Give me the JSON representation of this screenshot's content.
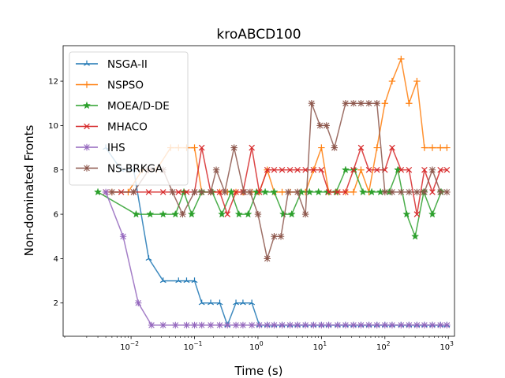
{
  "chart_data": {
    "type": "line",
    "title": "kroABCD100",
    "xlabel": "Time (s)",
    "ylabel": "Non-dominated Fronts",
    "xscale": "log",
    "xlim": [
      0.00085,
      1250
    ],
    "ylim": [
      0.5,
      13.6
    ],
    "xticks": [
      {
        "value": 0.01,
        "base": "10",
        "exp": "−2"
      },
      {
        "value": 0.1,
        "base": "10",
        "exp": "−1"
      },
      {
        "value": 1,
        "base": "10",
        "exp": "0"
      },
      {
        "value": 10,
        "base": "10",
        "exp": "1"
      },
      {
        "value": 100,
        "base": "10",
        "exp": "2"
      },
      {
        "value": 1000,
        "base": "10",
        "exp": "3"
      }
    ],
    "yticks": [
      2,
      4,
      6,
      8,
      10,
      12
    ],
    "grid": false,
    "legend": "upper-left",
    "series": [
      {
        "name": "NSGA-II",
        "color": "#1f77b4",
        "marker": "tri-up",
        "x": [
          0.004,
          0.007,
          0.011,
          0.019,
          0.032,
          0.056,
          0.075,
          0.1,
          0.13,
          0.18,
          0.25,
          0.33,
          0.45,
          0.58,
          0.8,
          1.05,
          1.4,
          1.8,
          2.4,
          3.2,
          4.2,
          5.6,
          7.5,
          10,
          13,
          18,
          24,
          32,
          42,
          56,
          75,
          100,
          130,
          180,
          240,
          320,
          420,
          560,
          750,
          950
        ],
        "y": [
          9,
          8,
          8,
          4,
          3,
          3,
          3,
          3,
          2,
          2,
          2,
          1,
          2,
          2,
          2,
          1,
          1,
          1,
          1,
          1,
          1,
          1,
          1,
          1,
          1,
          1,
          1,
          1,
          1,
          1,
          1,
          1,
          1,
          1,
          1,
          1,
          1,
          1,
          1,
          1
        ]
      },
      {
        "name": "NSPSO",
        "color": "#ff7f0e",
        "marker": "plus",
        "x": [
          0.005,
          0.009,
          0.015,
          0.025,
          0.042,
          0.056,
          0.075,
          0.1,
          0.13,
          0.18,
          0.25,
          0.33,
          0.45,
          0.58,
          0.8,
          1.05,
          1.4,
          1.8,
          2.4,
          3.2,
          4.2,
          5.6,
          7.5,
          10,
          13,
          18,
          24,
          32,
          42,
          56,
          75,
          100,
          130,
          180,
          240,
          320,
          420,
          560,
          750,
          950
        ],
        "y": [
          7,
          7,
          8,
          8,
          9,
          9,
          9,
          9,
          7,
          7,
          7,
          7,
          7,
          7,
          7,
          7,
          8,
          7,
          7,
          7,
          7,
          7,
          8,
          9,
          7,
          7,
          7,
          7,
          8,
          7,
          9,
          11,
          12,
          13,
          11,
          12,
          9,
          9,
          9,
          9
        ]
      },
      {
        "name": "MOEA/D-DE",
        "color": "#2ca02c",
        "marker": "star",
        "x": [
          0.003,
          0.012,
          0.02,
          0.032,
          0.05,
          0.068,
          0.09,
          0.13,
          0.19,
          0.27,
          0.38,
          0.5,
          0.7,
          0.95,
          1.3,
          1.8,
          2.5,
          3.4,
          4.8,
          6.5,
          9,
          12.5,
          17,
          24,
          33,
          45,
          62,
          85,
          117,
          160,
          220,
          300,
          410,
          560,
          770
        ],
        "y": [
          7,
          6,
          6,
          6,
          6,
          7,
          6,
          7,
          7,
          6,
          7,
          6,
          6,
          7,
          7,
          7,
          6,
          6,
          7,
          7,
          7,
          7,
          7,
          8,
          8,
          7,
          7,
          7,
          7,
          8,
          6,
          5,
          7,
          6,
          7
        ]
      },
      {
        "name": "MHACO",
        "color": "#d62728",
        "marker": "x",
        "x": [
          0.004,
          0.007,
          0.011,
          0.019,
          0.032,
          0.056,
          0.075,
          0.1,
          0.13,
          0.18,
          0.25,
          0.33,
          0.45,
          0.58,
          0.8,
          1.05,
          1.4,
          1.8,
          2.4,
          3.2,
          4.2,
          5.6,
          7.5,
          10,
          13,
          18,
          24,
          32,
          42,
          56,
          75,
          100,
          130,
          180,
          240,
          320,
          420,
          560,
          750,
          950
        ],
        "y": [
          7,
          7,
          7,
          7,
          7,
          7,
          7,
          7,
          9,
          7,
          7,
          6,
          7,
          7,
          9,
          7,
          8,
          8,
          8,
          8,
          8,
          8,
          8,
          8,
          7,
          7,
          7,
          8,
          9,
          8,
          8,
          8,
          9,
          8,
          8,
          6,
          8,
          7,
          8,
          8
        ]
      },
      {
        "name": "IHS",
        "color": "#9467bd",
        "marker": "asterisk",
        "x": [
          0.004,
          0.0075,
          0.013,
          0.021,
          0.032,
          0.05,
          0.075,
          0.1,
          0.13,
          0.18,
          0.25,
          0.33,
          0.45,
          0.58,
          0.8,
          1.05,
          1.4,
          1.8,
          2.4,
          3.2,
          4.2,
          5.6,
          7.5,
          10,
          13,
          18,
          24,
          32,
          42,
          56,
          75,
          100,
          130,
          180,
          240,
          320,
          420,
          560,
          750,
          950
        ],
        "y": [
          7,
          5,
          2,
          1,
          1,
          1,
          1,
          1,
          1,
          1,
          1,
          1,
          1,
          1,
          1,
          1,
          1,
          1,
          1,
          1,
          1,
          1,
          1,
          1,
          1,
          1,
          1,
          1,
          1,
          1,
          1,
          1,
          1,
          1,
          1,
          1,
          1,
          1,
          1,
          1
        ]
      },
      {
        "name": "NS-BRKGA",
        "color": "#8c564b",
        "marker": "asterisk",
        "x": [
          0.005,
          0.011,
          0.019,
          0.032,
          0.045,
          0.065,
          0.1,
          0.13,
          0.18,
          0.22,
          0.3,
          0.42,
          0.6,
          0.75,
          1.0,
          1.4,
          1.8,
          2.3,
          3.0,
          4.2,
          5.6,
          7.0,
          9.5,
          12,
          16,
          24,
          32,
          42,
          56,
          75,
          100,
          130,
          180,
          240,
          320,
          420,
          560,
          750,
          950
        ],
        "y": [
          7,
          7,
          8,
          8,
          7,
          6,
          7,
          7,
          7,
          8,
          7,
          9,
          7,
          7,
          6,
          4,
          5,
          5,
          7,
          7,
          6,
          11,
          10,
          10,
          9,
          11,
          11,
          11,
          11,
          11,
          7,
          7,
          7,
          7,
          7,
          7,
          8,
          7,
          7
        ]
      }
    ]
  }
}
